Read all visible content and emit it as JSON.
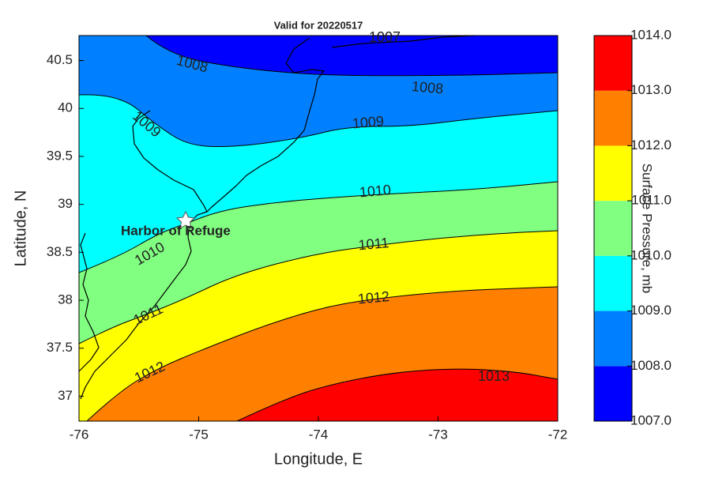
{
  "chart_data": {
    "type": "contour",
    "title": "Valid for 20220517",
    "xlabel": "Longitude, E",
    "ylabel": "Latitude, N",
    "xlim": [
      -76,
      -72
    ],
    "ylim": [
      36.74,
      40.76
    ],
    "xticks": [
      -76,
      -75,
      -74,
      -73,
      -72
    ],
    "yticks": [
      37,
      37.5,
      38,
      38.5,
      39,
      39.5,
      40,
      40.5
    ],
    "levels": [
      {
        "value": 1007,
        "label": "1007.0"
      },
      {
        "value": 1008,
        "label": "1008.0"
      },
      {
        "value": 1009,
        "label": "1009.0"
      },
      {
        "value": 1010,
        "label": "1010.0"
      },
      {
        "value": 1011,
        "label": "1011.0"
      },
      {
        "value": 1012,
        "label": "1012.0"
      },
      {
        "value": 1013,
        "label": "1013.0"
      },
      {
        "value": 1014,
        "label": "1014.0"
      }
    ],
    "colors": [
      "#0000ff",
      "#0080ff",
      "#00ffff",
      "#80ff80",
      "#ffff00",
      "#ff8000",
      "#ff0000"
    ],
    "colorbar_label": "Surface Pressure, mb",
    "contour_labels": [
      1007,
      1008,
      1008,
      1009,
      1009,
      1010,
      1010,
      1011,
      1011,
      1012,
      1012,
      1013
    ],
    "annotation": "Harbor of Refuge"
  }
}
